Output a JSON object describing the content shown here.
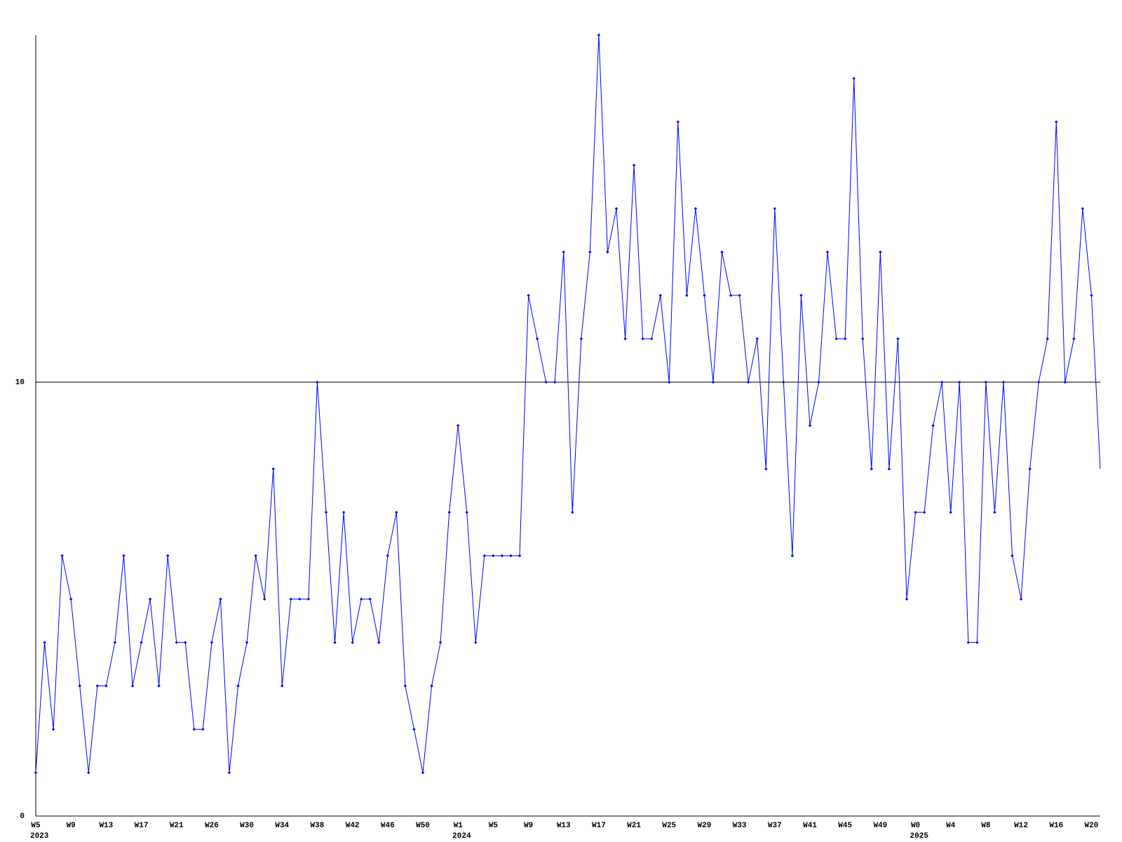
{
  "chart_data": {
    "type": "line",
    "categories": [
      [
        "W5",
        "2023"
      ],
      null,
      null,
      null,
      "W9",
      null,
      null,
      null,
      "W13",
      null,
      null,
      null,
      "W17",
      null,
      null,
      null,
      "W21",
      null,
      null,
      null,
      "W26",
      null,
      null,
      null,
      "W30",
      null,
      null,
      null,
      "W34",
      null,
      null,
      null,
      "W38",
      null,
      null,
      null,
      "W42",
      null,
      null,
      null,
      "W46",
      null,
      null,
      null,
      "W50",
      null,
      null,
      null,
      [
        "W1",
        "2024"
      ],
      null,
      null,
      null,
      "W5",
      null,
      null,
      null,
      "W9",
      null,
      null,
      null,
      "W13",
      null,
      null,
      null,
      "W17",
      null,
      null,
      null,
      "W21",
      null,
      null,
      null,
      "W25",
      null,
      null,
      null,
      "W29",
      null,
      null,
      null,
      "W33",
      null,
      null,
      null,
      "W37",
      null,
      null,
      null,
      "W41",
      null,
      null,
      null,
      "W45",
      null,
      null,
      null,
      "W49",
      null,
      null,
      null,
      [
        "W0",
        "2025"
      ],
      null,
      null,
      null,
      "W4",
      null,
      null,
      null,
      "W8",
      null,
      null,
      null,
      "W12",
      null,
      null,
      null,
      "W16",
      null,
      null,
      null,
      "W20",
      null
    ],
    "series": [
      {
        "color": "#0000ff",
        "values": [
          1,
          4,
          2,
          6,
          5,
          3,
          1,
          3,
          3,
          4,
          6,
          3,
          4,
          5,
          3,
          6,
          4,
          4,
          2,
          2,
          4,
          5,
          1,
          3,
          4,
          6,
          5,
          8,
          3,
          5,
          5,
          5,
          10,
          7,
          4,
          7,
          4,
          5,
          5,
          4,
          6,
          7,
          3,
          2,
          1,
          3,
          4,
          7,
          9,
          7,
          4,
          6,
          6,
          6,
          6,
          6,
          12,
          11,
          10,
          10,
          13,
          7,
          11,
          13,
          18,
          13,
          14,
          11,
          15,
          11,
          11,
          12,
          10,
          16,
          12,
          14,
          12,
          10,
          13,
          12,
          12,
          10,
          11,
          8,
          14,
          10,
          6,
          12,
          9,
          10,
          13,
          11,
          11,
          17,
          11,
          8,
          13,
          8,
          11,
          5,
          7,
          7,
          9,
          10,
          7,
          10,
          4,
          4,
          10,
          7,
          10,
          6,
          5,
          8,
          10,
          11,
          16,
          10,
          11,
          14,
          12,
          8
        ]
      }
    ],
    "ylim": [
      0,
      18
    ],
    "yticks": [
      0,
      10
    ],
    "grid": true
  }
}
